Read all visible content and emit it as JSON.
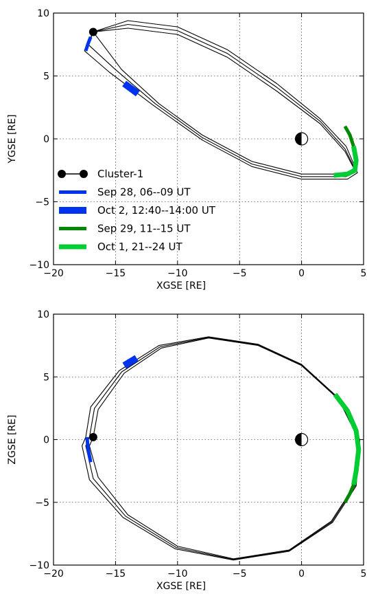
{
  "chart_data": [
    {
      "type": "line",
      "xlabel": "XGSE [RE]",
      "ylabel": "YGSE [RE]",
      "xlim": [
        -20,
        5
      ],
      "ylim": [
        -10,
        10
      ],
      "xticks": [
        "−20",
        "−15",
        "−10",
        "−5",
        "0",
        "5"
      ],
      "yticks": [
        "−10",
        "−5",
        "0",
        "5",
        "10"
      ],
      "grid": true,
      "legend_position": "lower-left",
      "earth": {
        "x": 0,
        "y": 0
      },
      "spacecraft": {
        "name": "Cluster-1",
        "x": -16.8,
        "y": 8.5
      },
      "orbits": [
        {
          "points": [
            [
              -16.8,
              8.5
            ],
            [
              -14.0,
              8.8
            ],
            [
              -10.0,
              8.3
            ],
            [
              -6.0,
              6.5
            ],
            [
              -2.0,
              3.8
            ],
            [
              1.5,
              1.2
            ],
            [
              3.5,
              -1.0
            ],
            [
              4.3,
              -2.5
            ],
            [
              3.5,
              -2.8
            ],
            [
              0.0,
              -2.8
            ],
            [
              -4.0,
              -1.8
            ],
            [
              -8.0,
              0.3
            ],
            [
              -11.5,
              2.8
            ],
            [
              -14.5,
              5.5
            ],
            [
              -16.8,
              8.5
            ]
          ]
        },
        {
          "points": [
            [
              -16.8,
              8.5
            ],
            [
              -14.0,
              9.1
            ],
            [
              -10.0,
              8.6
            ],
            [
              -6.0,
              6.8
            ],
            [
              -2.0,
              4.1
            ],
            [
              1.5,
              1.4
            ],
            [
              3.5,
              -0.8
            ],
            [
              4.4,
              -2.6
            ],
            [
              3.6,
              -3.0
            ],
            [
              0.0,
              -3.0
            ],
            [
              -4.0,
              -2.0
            ],
            [
              -8.0,
              0.1
            ],
            [
              -11.8,
              2.8
            ],
            [
              -15.0,
              5.5
            ],
            [
              -17.2,
              7.5
            ],
            [
              -16.8,
              8.5
            ]
          ]
        },
        {
          "points": [
            [
              -16.8,
              8.5
            ],
            [
              -14.0,
              9.4
            ],
            [
              -10.0,
              8.9
            ],
            [
              -6.0,
              7.1
            ],
            [
              -2.0,
              4.4
            ],
            [
              1.5,
              1.6
            ],
            [
              3.6,
              -0.6
            ],
            [
              4.5,
              -2.7
            ],
            [
              3.7,
              -3.2
            ],
            [
              0.0,
              -3.2
            ],
            [
              -4.0,
              -2.2
            ],
            [
              -8.0,
              -0.1
            ],
            [
              -12.0,
              2.7
            ],
            [
              -15.5,
              5.3
            ],
            [
              -17.5,
              7.0
            ],
            [
              -16.8,
              8.5
            ]
          ]
        }
      ],
      "segments": [
        {
          "label": "Sep 28, 06--09 UT",
          "color": "#0033ee",
          "width": 5,
          "points": [
            [
              -17.0,
              8.1
            ],
            [
              -17.2,
              7.6
            ],
            [
              -17.4,
              7.0
            ]
          ]
        },
        {
          "label": "Oct 2, 12:40--14:00 UT",
          "color": "#0033ee",
          "width": 10,
          "points": [
            [
              -14.3,
              4.4
            ],
            [
              -13.2,
              3.6
            ]
          ]
        },
        {
          "label": "Sep 29, 11--15 UT",
          "color": "#008800",
          "width": 5,
          "points": [
            [
              3.5,
              1.0
            ],
            [
              3.9,
              0.3
            ],
            [
              4.2,
              -0.6
            ]
          ]
        },
        {
          "label": "Oct 1, 21--24 UT",
          "color": "#00cc33",
          "width": 7,
          "points": [
            [
              4.2,
              -0.6
            ],
            [
              4.4,
              -1.7
            ],
            [
              4.3,
              -2.5
            ],
            [
              3.7,
              -2.8
            ],
            [
              2.6,
              -2.9
            ]
          ]
        }
      ]
    },
    {
      "type": "line",
      "xlabel": "XGSE [RE]",
      "ylabel": "ZGSE [RE]",
      "xlim": [
        -20,
        5
      ],
      "ylim": [
        -10,
        10
      ],
      "xticks": [
        "−20",
        "−15",
        "−10",
        "−5",
        "0",
        "5"
      ],
      "yticks": [
        "−10",
        "−5",
        "0",
        "5",
        "10"
      ],
      "grid": true,
      "earth": {
        "x": 0,
        "y": 0
      },
      "spacecraft": {
        "name": "Cluster-1",
        "x": -16.8,
        "y": 0.2
      },
      "orbits": [
        {
          "points": [
            [
              -16.8,
              0.2
            ],
            [
              -16.4,
              2.4
            ],
            [
              -14.3,
              5.3
            ],
            [
              -11.3,
              7.3
            ],
            [
              -7.5,
              8.1
            ],
            [
              -3.5,
              7.5
            ],
            [
              0.0,
              5.9
            ],
            [
              3.0,
              3.2
            ],
            [
              4.6,
              0.0
            ],
            [
              4.3,
              -3.6
            ],
            [
              2.4,
              -6.5
            ],
            [
              -1.0,
              -8.8
            ],
            [
              -5.5,
              -9.5
            ],
            [
              -10.0,
              -8.5
            ],
            [
              -14.0,
              -6.0
            ],
            [
              -16.4,
              -3.0
            ],
            [
              -17.1,
              -0.5
            ],
            [
              -16.8,
              0.2
            ]
          ]
        },
        {
          "points": [
            [
              -17.1,
              0.2
            ],
            [
              -16.7,
              2.5
            ],
            [
              -14.5,
              5.4
            ],
            [
              -11.4,
              7.4
            ],
            [
              -7.5,
              8.15
            ],
            [
              -3.5,
              7.55
            ],
            [
              0.0,
              5.95
            ],
            [
              3.0,
              3.25
            ],
            [
              4.65,
              0.0
            ],
            [
              4.35,
              -3.65
            ],
            [
              2.45,
              -6.55
            ],
            [
              -1.0,
              -8.85
            ],
            [
              -5.5,
              -9.55
            ],
            [
              -10.1,
              -8.6
            ],
            [
              -14.2,
              -6.1
            ],
            [
              -16.8,
              -3.1
            ],
            [
              -17.4,
              -0.5
            ],
            [
              -17.1,
              0.2
            ]
          ]
        },
        {
          "points": [
            [
              -17.4,
              0.2
            ],
            [
              -17.0,
              2.6
            ],
            [
              -14.7,
              5.5
            ],
            [
              -11.5,
              7.5
            ],
            [
              -7.5,
              8.2
            ],
            [
              -3.5,
              7.6
            ],
            [
              0.0,
              6.0
            ],
            [
              3.0,
              3.3
            ],
            [
              4.7,
              0.0
            ],
            [
              4.4,
              -3.7
            ],
            [
              2.5,
              -6.6
            ],
            [
              -1.0,
              -8.9
            ],
            [
              -5.5,
              -9.6
            ],
            [
              -10.2,
              -8.7
            ],
            [
              -14.4,
              -6.2
            ],
            [
              -17.1,
              -3.2
            ],
            [
              -17.7,
              -0.5
            ],
            [
              -17.4,
              0.2
            ]
          ]
        }
      ],
      "segments": [
        {
          "label": "Sep 28, 06--09 UT",
          "color": "#0033ee",
          "width": 5,
          "points": [
            [
              -17.3,
              0.2
            ],
            [
              -17.2,
              -0.8
            ],
            [
              -17.0,
              -1.8
            ]
          ]
        },
        {
          "label": "Oct 2, 12:40--14:00 UT",
          "color": "#0033ee",
          "width": 10,
          "points": [
            [
              -14.3,
              5.9
            ],
            [
              -13.3,
              6.5
            ]
          ]
        },
        {
          "label": "Oct 1, 21--24 UT",
          "color": "#00cc33",
          "width": 7,
          "points": [
            [
              2.7,
              3.6
            ],
            [
              3.7,
              2.3
            ],
            [
              4.4,
              0.7
            ],
            [
              4.6,
              -0.8
            ],
            [
              4.4,
              -2.5
            ],
            [
              4.2,
              -3.6
            ]
          ]
        },
        {
          "label": "Sep 29, 11--15 UT",
          "color": "#008800",
          "width": 5,
          "points": [
            [
              4.2,
              -3.6
            ],
            [
              3.9,
              -4.3
            ],
            [
              3.5,
              -5.0
            ]
          ]
        }
      ]
    }
  ],
  "legend": [
    {
      "label": "Cluster-1",
      "kind": "marker",
      "color": "#000000"
    },
    {
      "label": "Sep 28, 06--09 UT",
      "kind": "line",
      "color": "#0033ee",
      "width": 5
    },
    {
      "label": "Oct 2, 12:40--14:00 UT",
      "kind": "line",
      "color": "#0033ee",
      "width": 10
    },
    {
      "label": "Sep 29, 11--15 UT",
      "kind": "line",
      "color": "#008800",
      "width": 5
    },
    {
      "label": "Oct 1, 21--24 UT",
      "kind": "line",
      "color": "#00cc33",
      "width": 7
    }
  ]
}
